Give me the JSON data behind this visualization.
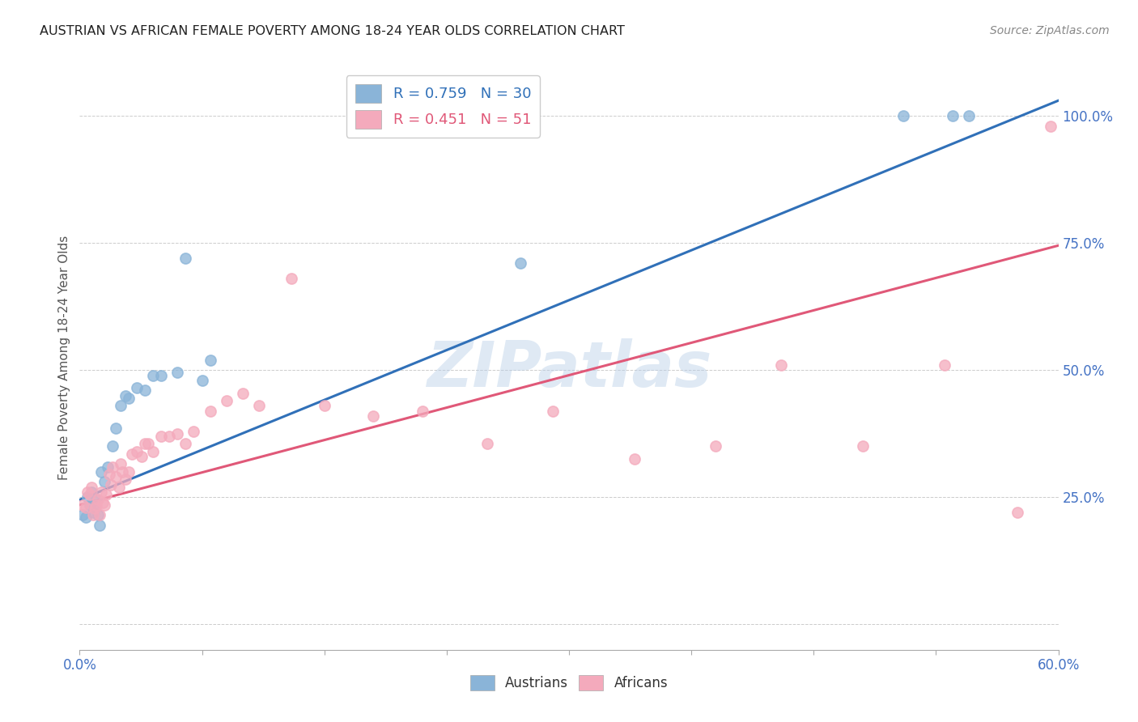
{
  "title": "AUSTRIAN VS AFRICAN FEMALE POVERTY AMONG 18-24 YEAR OLDS CORRELATION CHART",
  "source": "Source: ZipAtlas.com",
  "ylabel": "Female Poverty Among 18-24 Year Olds",
  "xmin": 0.0,
  "xmax": 0.6,
  "ymin": -0.05,
  "ymax": 1.1,
  "yticks_right": [
    0.25,
    0.5,
    0.75,
    1.0
  ],
  "ytick_labels_right": [
    "25.0%",
    "50.0%",
    "75.0%",
    "100.0%"
  ],
  "austrians_color": "#8ab4d8",
  "africans_color": "#f4aabc",
  "blue_line_color": "#3070b8",
  "pink_line_color": "#e05878",
  "legend_r_austrians": "R = 0.759",
  "legend_n_austrians": "N = 30",
  "legend_r_africans": "R = 0.451",
  "legend_n_africans": "N = 51",
  "watermark": "ZIPatlas",
  "blue_line_x0": 0.0,
  "blue_line_y0": 0.245,
  "blue_line_x1": 0.6,
  "blue_line_y1": 1.03,
  "pink_line_x0": 0.0,
  "pink_line_y0": 0.235,
  "pink_line_x1": 0.6,
  "pink_line_y1": 0.745,
  "austrians_x": [
    0.002,
    0.004,
    0.005,
    0.006,
    0.007,
    0.008,
    0.009,
    0.01,
    0.011,
    0.012,
    0.013,
    0.015,
    0.017,
    0.02,
    0.022,
    0.025,
    0.028,
    0.03,
    0.035,
    0.04,
    0.045,
    0.05,
    0.06,
    0.065,
    0.075,
    0.08,
    0.27,
    0.505,
    0.535,
    0.545
  ],
  "austrians_y": [
    0.215,
    0.21,
    0.25,
    0.235,
    0.26,
    0.22,
    0.23,
    0.245,
    0.215,
    0.195,
    0.3,
    0.28,
    0.31,
    0.35,
    0.385,
    0.43,
    0.45,
    0.445,
    0.465,
    0.46,
    0.49,
    0.49,
    0.495,
    0.72,
    0.48,
    0.52,
    0.71,
    1.0,
    1.0,
    1.0
  ],
  "africans_x": [
    0.002,
    0.004,
    0.005,
    0.006,
    0.007,
    0.008,
    0.009,
    0.01,
    0.011,
    0.012,
    0.013,
    0.014,
    0.015,
    0.016,
    0.018,
    0.019,
    0.02,
    0.022,
    0.024,
    0.025,
    0.026,
    0.028,
    0.03,
    0.032,
    0.035,
    0.038,
    0.04,
    0.042,
    0.045,
    0.05,
    0.055,
    0.06,
    0.065,
    0.07,
    0.08,
    0.09,
    0.1,
    0.11,
    0.13,
    0.15,
    0.18,
    0.21,
    0.25,
    0.29,
    0.34,
    0.39,
    0.43,
    0.48,
    0.53,
    0.575,
    0.595
  ],
  "africans_y": [
    0.235,
    0.23,
    0.26,
    0.255,
    0.27,
    0.215,
    0.228,
    0.235,
    0.245,
    0.215,
    0.26,
    0.24,
    0.235,
    0.255,
    0.295,
    0.275,
    0.31,
    0.29,
    0.27,
    0.315,
    0.3,
    0.285,
    0.3,
    0.335,
    0.34,
    0.33,
    0.355,
    0.355,
    0.34,
    0.37,
    0.37,
    0.375,
    0.355,
    0.38,
    0.42,
    0.44,
    0.455,
    0.43,
    0.68,
    0.43,
    0.41,
    0.42,
    0.355,
    0.42,
    0.325,
    0.35,
    0.51,
    0.35,
    0.51,
    0.22,
    0.98
  ]
}
